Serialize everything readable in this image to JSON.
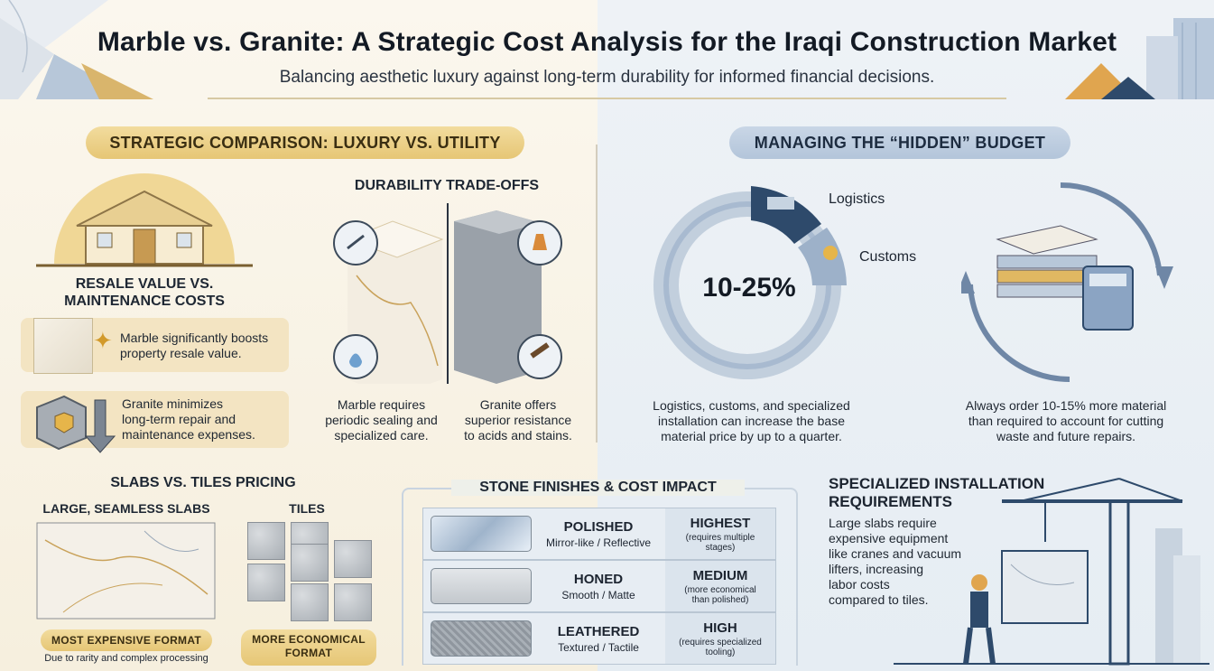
{
  "header": {
    "title": "Marble vs. Granite: A Strategic Cost Analysis for the Iraqi Construction Market",
    "subtitle": "Balancing aesthetic luxury against long-term durability for informed financial decisions."
  },
  "left_section": {
    "pill": "STRATEGIC COMPARISON: LUXURY VS. UTILITY",
    "resale": {
      "heading_line1": "RESALE VALUE VS.",
      "heading_line2": "MAINTENANCE COSTS",
      "marble_line1": "Marble significantly boosts",
      "marble_line2": "property resale value.",
      "granite_line1": "Granite minimizes",
      "granite_line2": "long-term repair and",
      "granite_line3": "maintenance expenses."
    },
    "durability": {
      "heading": "DURABILITY TRADE-OFFS",
      "marble_line1": "Marble requires",
      "marble_line2": "periodic sealing and",
      "marble_line3": "specialized care.",
      "granite_line1": "Granite offers",
      "granite_line2": "superior resistance",
      "granite_line3": "to acids and stains."
    }
  },
  "right_section": {
    "pill": "MANAGING THE “HIDDEN” BUDGET",
    "donut": {
      "center_label": "10-25%",
      "segments": [
        "Logistics",
        "Customs"
      ],
      "caption_line1": "Logistics, customs, and specialized",
      "caption_line2": "installation can increase the base",
      "caption_line3": "material price by up to a quarter."
    },
    "overorder": {
      "caption_line1": "Always order 10-15% more material",
      "caption_line2": "than required to account for cutting",
      "caption_line3": "waste and future repairs."
    }
  },
  "slabs_tiles": {
    "heading": "SLABS VS. TILES PRICING",
    "slab_label": "LARGE, SEAMLESS SLABS",
    "tiles_label": "TILES",
    "slab_tag": "MOST EXPENSIVE FORMAT",
    "slab_note": "Due to rarity and complex processing",
    "tile_tag_line1": "MORE ECONOMICAL",
    "tile_tag_line2": "FORMAT"
  },
  "finishes": {
    "heading": "STONE FINISHES & COST IMPACT",
    "rows": [
      {
        "name": "POLISHED",
        "desc": "Mirror-like / Reflective",
        "cost": "HIGHEST",
        "note_line1": "(requires multiple",
        "note_line2": "stages)"
      },
      {
        "name": "HONED",
        "desc": "Smooth / Matte",
        "cost": "MEDIUM",
        "note_line1": "(more economical",
        "note_line2": "than polished)"
      },
      {
        "name": "LEATHERED",
        "desc": "Textured / Tactile",
        "cost": "HIGH",
        "note_line1": "(requires specialized",
        "note_line2": "tooling)"
      }
    ]
  },
  "installation": {
    "heading_line1": "SPECIALIZED INSTALLATION",
    "heading_line2": "REQUIREMENTS",
    "body_line1": "Large slabs require",
    "body_line2": "expensive equipment",
    "body_line3": "like cranes and vacuum",
    "body_line4": "lifters, increasing",
    "body_line5": "labor costs",
    "body_line6": "compared to tiles."
  },
  "colors": {
    "gold": "#e6c675",
    "blue": "#b3c5da",
    "navy": "#2e4a6b",
    "marble_vein": "#c9a25a"
  }
}
